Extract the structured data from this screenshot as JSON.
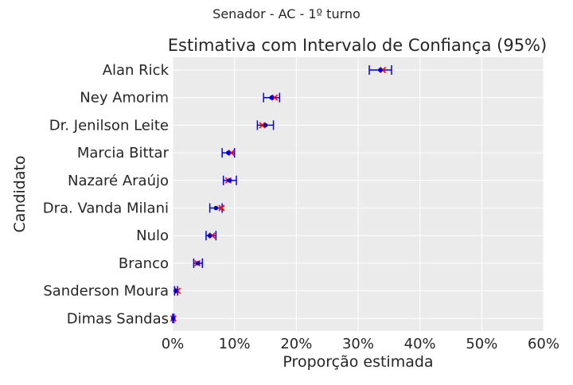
{
  "suptitle": "Senador - AC - 1º turno",
  "chart_data": {
    "type": "errorbar",
    "title": "Estimativa com Intervalo de Confiança (95%)",
    "xlabel": "Proporção estimada",
    "ylabel": "Candidato",
    "xlim": [
      0,
      0.6
    ],
    "xticks": [
      0,
      0.1,
      0.2,
      0.3,
      0.4,
      0.5,
      0.6
    ],
    "xtick_labels": [
      "0%",
      "10%",
      "20%",
      "30%",
      "40%",
      "50%",
      "60%"
    ],
    "grid": true,
    "categories": [
      "Alan Rick",
      "Ney Amorim",
      "Dr. Jenilson Leite",
      "Marcia Bittar",
      "Nazaré Araújo",
      "Dra. Vanda Milani",
      "Nulo",
      "Branco",
      "Sanderson Moura",
      "Dimas Sandas"
    ],
    "estimate": [
      0.336,
      0.16,
      0.15,
      0.09,
      0.092,
      0.07,
      0.06,
      0.041,
      0.005,
      0.001
    ],
    "ci_low": [
      0.318,
      0.147,
      0.137,
      0.08,
      0.082,
      0.06,
      0.054,
      0.034,
      0.003,
      0.0
    ],
    "ci_high": [
      0.354,
      0.173,
      0.163,
      0.1,
      0.103,
      0.08,
      0.07,
      0.048,
      0.008,
      0.002
    ],
    "observed": [
      0.34,
      0.165,
      0.145,
      0.095,
      0.09,
      0.079,
      0.064,
      0.04,
      0.008,
      0.001
    ],
    "colors": {
      "estimate": "#0000cc",
      "errorbar": "#0000ff",
      "observed": "#ff0000",
      "background": "#ebebeb",
      "grid": "#ffffff"
    }
  }
}
